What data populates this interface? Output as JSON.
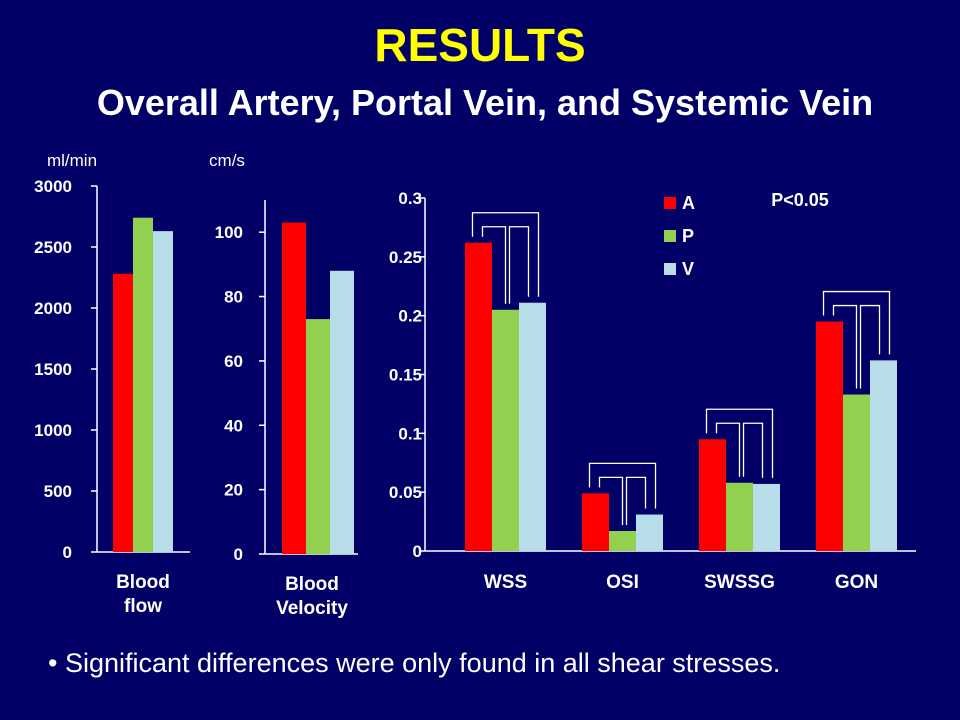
{
  "title": "RESULTS",
  "subtitle": "Overall Artery, Portal Vein, and Systemic Vein",
  "bullet": "• Significant differences were only found in all shear stresses.",
  "colors": {
    "A": "#ff0000",
    "P": "#92d050",
    "V": "#b7dee8",
    "background": "#000066"
  },
  "chart_data": [
    {
      "type": "bar",
      "unit_label": "ml/min",
      "categories": [
        "Blood flow"
      ],
      "category_lines": [
        [
          "Blood",
          "flow"
        ]
      ],
      "series": [
        {
          "name": "A",
          "values": [
            2280
          ]
        },
        {
          "name": "P",
          "values": [
            2740
          ]
        },
        {
          "name": "V",
          "values": [
            2630
          ]
        }
      ],
      "ylim": [
        0,
        3000
      ],
      "yticks": [
        0,
        500,
        1000,
        1500,
        2000,
        2500,
        3000
      ]
    },
    {
      "type": "bar",
      "unit_label": "cm/s",
      "categories": [
        "Blood Velocity"
      ],
      "category_lines": [
        [
          "Blood",
          "Velocity"
        ]
      ],
      "series": [
        {
          "name": "A",
          "values": [
            103
          ]
        },
        {
          "name": "P",
          "values": [
            73
          ]
        },
        {
          "name": "V",
          "values": [
            88
          ]
        }
      ],
      "ylim": [
        0,
        110
      ],
      "yticks": [
        0,
        20,
        40,
        60,
        80,
        100
      ]
    },
    {
      "type": "bar",
      "categories": [
        "WSS",
        "OSI",
        "SWSSG",
        "GON"
      ],
      "series": [
        {
          "name": "A",
          "values": [
            0.262,
            0.049,
            0.095,
            0.195
          ]
        },
        {
          "name": "P",
          "values": [
            0.205,
            0.017,
            0.058,
            0.133
          ]
        },
        {
          "name": "V",
          "values": [
            0.211,
            0.031,
            0.057,
            0.162
          ]
        }
      ],
      "ylim": [
        0,
        0.3
      ],
      "yticks": [
        0,
        0.05,
        0.1,
        0.15,
        0.2,
        0.25,
        0.3
      ],
      "ytick_labels": [
        "0",
        "0.05",
        "0.1",
        "0.15",
        "0.2",
        "0.25",
        "0.3"
      ],
      "legend": [
        "A",
        "P",
        "V"
      ],
      "legend_position": "top",
      "annotation": "P<0.05",
      "significance_brackets": "pairwise A-P, A-V, P-V for every category"
    }
  ]
}
